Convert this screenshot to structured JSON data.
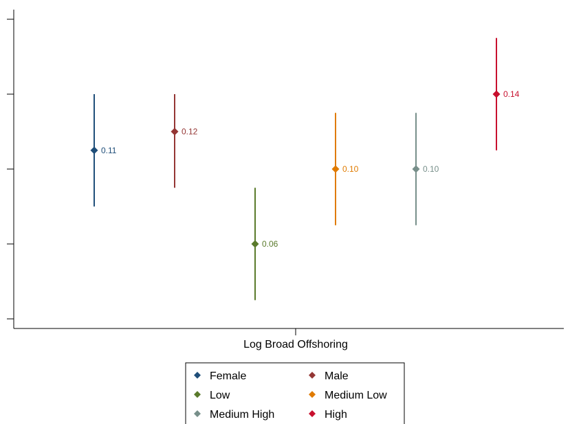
{
  "chart_data": {
    "type": "scatter",
    "xlabel": "Log Broad Offshoring",
    "ylim": [
      0.02,
      0.18
    ],
    "y_tick_count": 5,
    "grid": false,
    "legend_position": "bottom",
    "series": [
      {
        "name": "Female",
        "color": "#1f4e79",
        "estimate": 0.11,
        "ci": [
          0.08,
          0.14
        ],
        "label": "0.11"
      },
      {
        "name": "Male",
        "color": "#943634",
        "estimate": 0.12,
        "ci": [
          0.09,
          0.14
        ],
        "label": "0.12"
      },
      {
        "name": "Low",
        "color": "#5a7a2b",
        "estimate": 0.06,
        "ci": [
          0.03,
          0.09
        ],
        "label": "0.06"
      },
      {
        "name": "Medium Low",
        "color": "#e07b00",
        "estimate": 0.1,
        "ci": [
          0.07,
          0.13
        ],
        "label": "0.10"
      },
      {
        "name": "Medium High",
        "color": "#778f8a",
        "estimate": 0.1,
        "ci": [
          0.07,
          0.13
        ],
        "label": "0.10"
      },
      {
        "name": "High",
        "color": "#c8102e",
        "estimate": 0.14,
        "ci": [
          0.11,
          0.17
        ],
        "label": "0.14"
      }
    ]
  }
}
